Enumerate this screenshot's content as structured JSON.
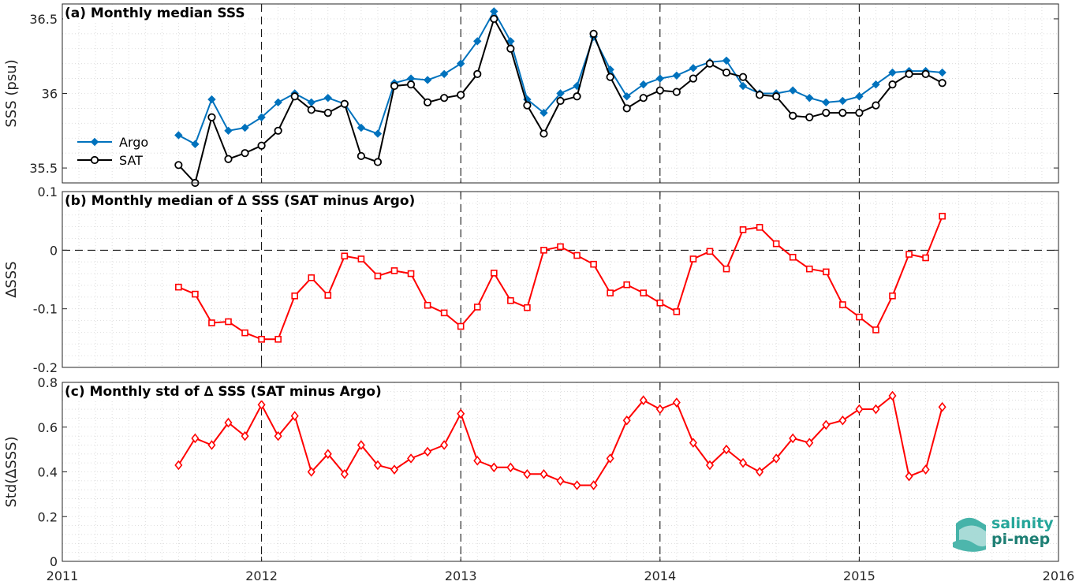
{
  "chart_data": [
    {
      "type": "line",
      "title": "(a) Monthly median SSS",
      "xlabel": "",
      "ylabel": "SSS (psu)",
      "ylim": [
        35.4,
        36.6
      ],
      "xlim": [
        2011,
        2016
      ],
      "yticks": [
        "35.5",
        "36",
        "36.5"
      ],
      "ytick_values": [
        35.5,
        36.0,
        36.5
      ],
      "grid": true,
      "legend_position": "left",
      "x_dates": [
        "2011-08",
        "2011-09",
        "2011-10",
        "2011-11",
        "2011-12",
        "2012-01",
        "2012-02",
        "2012-03",
        "2012-04",
        "2012-05",
        "2012-06",
        "2012-07",
        "2012-08",
        "2012-09",
        "2012-10",
        "2012-11",
        "2012-12",
        "2013-01",
        "2013-02",
        "2013-03",
        "2013-04",
        "2013-05",
        "2013-06",
        "2013-07",
        "2013-08",
        "2013-09",
        "2013-10",
        "2013-11",
        "2013-12",
        "2014-01",
        "2014-02",
        "2014-03",
        "2014-04",
        "2014-05",
        "2014-06",
        "2014-07",
        "2014-08",
        "2014-09",
        "2014-10",
        "2014-11",
        "2014-12",
        "2015-01",
        "2015-02",
        "2015-03",
        "2015-04",
        "2015-05",
        "2015-06"
      ],
      "series": [
        {
          "name": "Argo",
          "color": "#0072bd",
          "marker": "diamond",
          "values": [
            35.72,
            35.66,
            35.96,
            35.75,
            35.77,
            35.84,
            35.94,
            36.0,
            35.94,
            35.97,
            35.93,
            35.77,
            35.73,
            36.07,
            36.1,
            36.09,
            36.13,
            36.2,
            36.35,
            36.55,
            36.35,
            35.96,
            35.87,
            36.0,
            36.05,
            36.38,
            36.16,
            35.98,
            36.06,
            36.1,
            36.12,
            36.17,
            36.21,
            36.22,
            36.05,
            36.0,
            36.0,
            36.02,
            35.97,
            35.94,
            35.95,
            35.98,
            36.06,
            36.14,
            36.15,
            36.15,
            36.14
          ]
        },
        {
          "name": "SAT",
          "color": "#000000",
          "marker": "circle",
          "values": [
            35.52,
            35.4,
            35.84,
            35.56,
            35.6,
            35.65,
            35.75,
            35.98,
            35.89,
            35.87,
            35.93,
            35.58,
            35.54,
            36.05,
            36.06,
            35.94,
            35.97,
            35.99,
            36.13,
            36.5,
            36.3,
            35.92,
            35.73,
            35.95,
            35.98,
            36.4,
            36.11,
            35.9,
            35.97,
            36.02,
            36.01,
            36.1,
            36.2,
            36.14,
            36.11,
            35.99,
            35.98,
            35.85,
            35.84,
            35.87,
            35.87,
            35.87,
            35.92,
            36.06,
            36.13,
            36.13,
            36.07
          ]
        }
      ]
    },
    {
      "type": "line",
      "title": "(b) Monthly median of ∆ SSS (SAT minus Argo)",
      "xlabel": "",
      "ylabel": "∆SSS",
      "ylim": [
        -0.2,
        0.1
      ],
      "xlim": [
        2011,
        2016
      ],
      "yticks": [
        "-0.2",
        "-0.1",
        "0",
        "0.1"
      ],
      "ytick_values": [
        -0.2,
        -0.1,
        0,
        0.1
      ],
      "grid": true,
      "series": [
        {
          "color": "#ff0000",
          "marker": "square",
          "values": [
            -0.063,
            -0.075,
            -0.124,
            -0.122,
            -0.141,
            -0.152,
            -0.152,
            -0.078,
            -0.047,
            -0.077,
            -0.01,
            -0.015,
            -0.044,
            -0.035,
            -0.04,
            -0.094,
            -0.107,
            -0.13,
            -0.097,
            -0.039,
            -0.086,
            -0.098,
            0.0,
            0.006,
            -0.009,
            -0.024,
            -0.073,
            -0.059,
            -0.073,
            -0.09,
            -0.105,
            -0.015,
            -0.002,
            -0.032,
            0.035,
            0.039,
            0.011,
            -0.012,
            -0.032,
            -0.037,
            -0.093,
            -0.114,
            -0.136,
            -0.078,
            -0.007,
            -0.013,
            0.058
          ]
        }
      ]
    },
    {
      "type": "line",
      "title": "(c) Monthly std of ∆ SSS (SAT minus Argo)",
      "xlabel": "",
      "ylabel": "Std(∆SSS)",
      "ylim": [
        0,
        0.8
      ],
      "xlim": [
        2011,
        2016
      ],
      "yticks": [
        "0",
        "0.2",
        "0.4",
        "0.6",
        "0.8"
      ],
      "ytick_values": [
        0,
        0.2,
        0.4,
        0.6,
        0.8
      ],
      "xticks": [
        "2011",
        "2012",
        "2013",
        "2014",
        "2015",
        "2016"
      ],
      "grid": true,
      "series": [
        {
          "color": "#ff0000",
          "marker": "diamond",
          "values": [
            0.43,
            0.55,
            0.52,
            0.62,
            0.56,
            0.7,
            0.56,
            0.65,
            0.4,
            0.48,
            0.39,
            0.52,
            0.43,
            0.41,
            0.46,
            0.49,
            0.52,
            0.66,
            0.45,
            0.42,
            0.42,
            0.39,
            0.39,
            0.36,
            0.34,
            0.34,
            0.46,
            0.63,
            0.72,
            0.68,
            0.71,
            0.53,
            0.43,
            0.5,
            0.44,
            0.4,
            0.46,
            0.55,
            0.53,
            0.61,
            0.63,
            0.68,
            0.68,
            0.74,
            0.38,
            0.41,
            0.69
          ]
        }
      ]
    }
  ],
  "logo": {
    "line1": "salinity",
    "line2": "pi-mep",
    "color1": "#26a69a",
    "color2": "#1e7f74"
  }
}
